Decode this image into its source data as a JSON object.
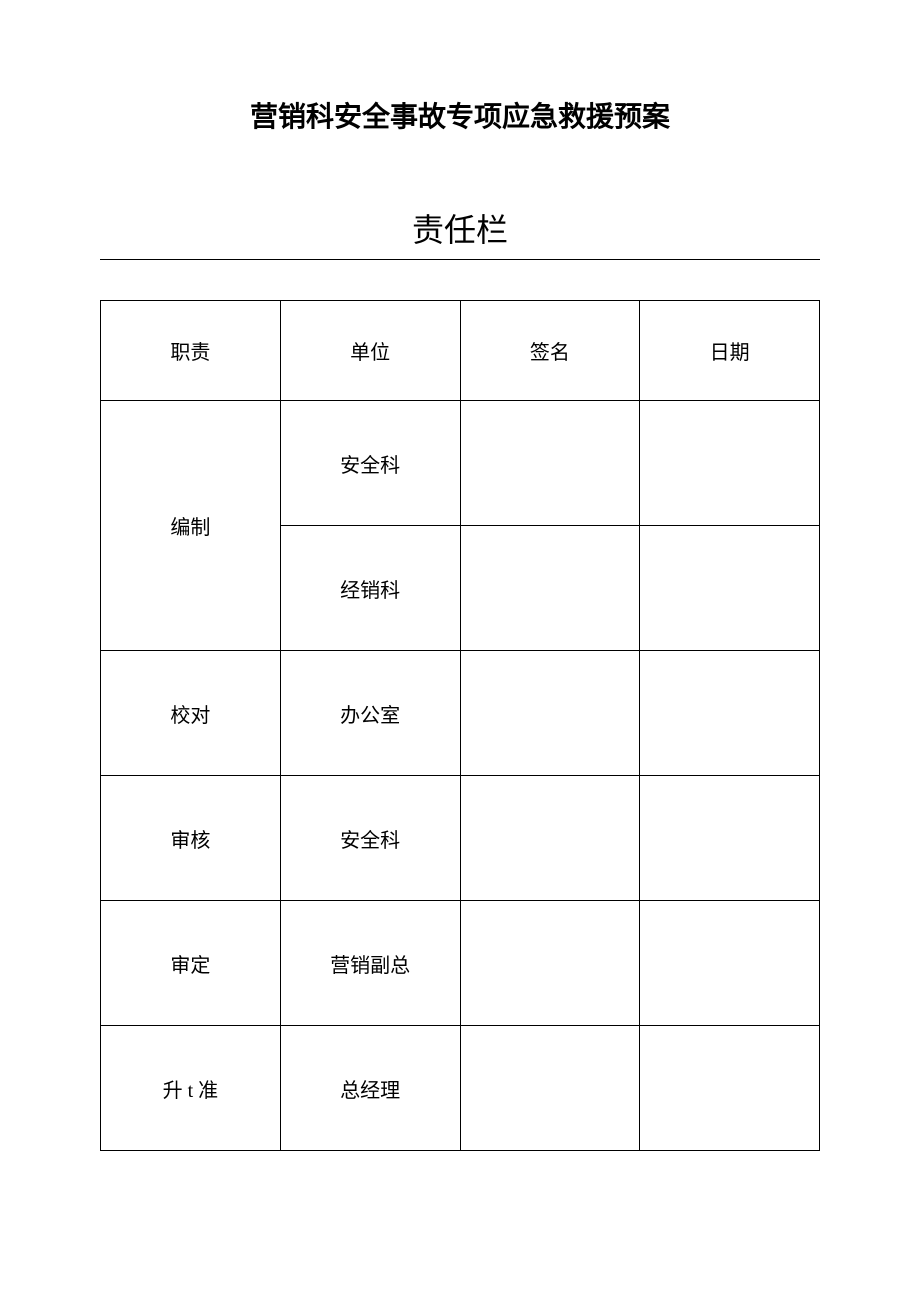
{
  "page_title": "营销科安全事故专项应急救援预案",
  "section_title": "责任栏",
  "table": {
    "columns": [
      "职责",
      "单位",
      "签名",
      "日期"
    ],
    "rows": [
      {
        "role": "编制",
        "units": [
          "安全科",
          "经销科"
        ],
        "signature": "",
        "date": "",
        "rowspan": 2
      },
      {
        "role": "校对",
        "units": [
          "办公室"
        ],
        "signature": "",
        "date": "",
        "rowspan": 1
      },
      {
        "role": "审核",
        "units": [
          "安全科"
        ],
        "signature": "",
        "date": "",
        "rowspan": 1
      },
      {
        "role": "审定",
        "units": [
          "营销副总"
        ],
        "signature": "",
        "date": "",
        "rowspan": 1
      },
      {
        "role": "升 t 准",
        "units": [
          "总经理"
        ],
        "signature": "",
        "date": "",
        "rowspan": 1
      }
    ],
    "column_widths": [
      "25%",
      "25%",
      "25%",
      "25%"
    ],
    "border_color": "#000000",
    "text_color": "#000000",
    "font_size": 20
  },
  "background_color": "#ffffff"
}
